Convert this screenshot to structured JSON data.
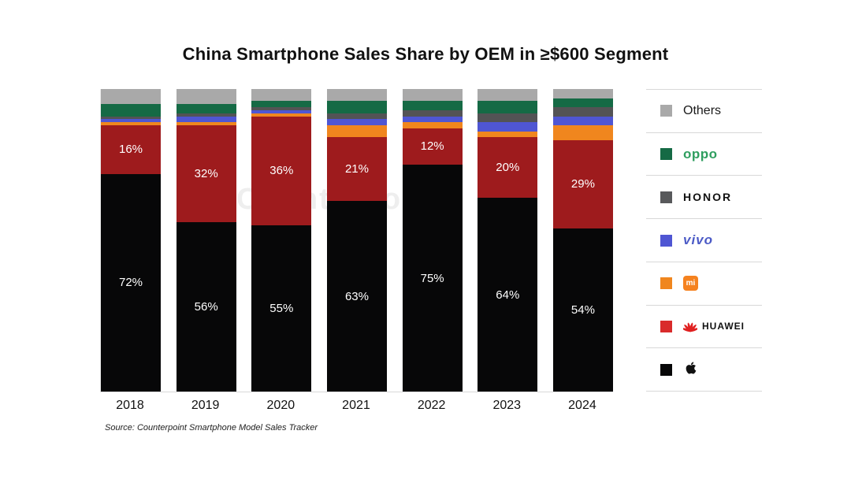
{
  "title": "China Smartphone Sales Share by OEM in ≥$600 Segment",
  "source": "Source: Counterpoint Smartphone Model Sales Tracker",
  "watermark": "Counterpoint",
  "chart_data": {
    "type": "bar",
    "stacked": true,
    "categories": [
      "2018",
      "2019",
      "2020",
      "2021",
      "2022",
      "2023",
      "2024"
    ],
    "series": [
      {
        "name": "Apple",
        "color": "#070708",
        "values": [
          72,
          56,
          55,
          63,
          75,
          64,
          54
        ],
        "labels_shown": true
      },
      {
        "name": "HUAWEI",
        "color": "#9e1b1d",
        "values": [
          16,
          32,
          36,
          21,
          12,
          20,
          29
        ],
        "labels_shown": true
      },
      {
        "name": "Mi",
        "color": "#f0861e",
        "values": [
          1,
          1,
          1,
          4,
          2,
          2,
          5
        ],
        "labels_shown": false
      },
      {
        "name": "vivo",
        "color": "#4f56d3",
        "values": [
          1,
          2,
          1,
          2,
          2,
          3,
          3
        ],
        "labels_shown": false
      },
      {
        "name": "HONOR",
        "color": "#535355",
        "values": [
          1,
          1,
          1,
          2,
          2,
          3,
          3
        ],
        "labels_shown": false
      },
      {
        "name": "OPPO",
        "color": "#156a45",
        "values": [
          4,
          3,
          2,
          4,
          3,
          4,
          3
        ],
        "labels_shown": false
      },
      {
        "name": "Others",
        "color": "#a9a9a9",
        "values": [
          5,
          5,
          4,
          4,
          4,
          4,
          3
        ],
        "labels_shown": false
      }
    ],
    "ylim": [
      0,
      100
    ],
    "value_suffix": "%",
    "grid": false,
    "legend_position": "right"
  },
  "legend": {
    "items": [
      {
        "key": "others",
        "label": "Others",
        "swatch": "#a9a9a9"
      },
      {
        "key": "oppo",
        "label": "oppo",
        "swatch": "#156a45"
      },
      {
        "key": "honor",
        "label": "HONOR",
        "swatch": "#58595b"
      },
      {
        "key": "vivo",
        "label": "vivo",
        "swatch": "#4f56d3"
      },
      {
        "key": "mi",
        "label": "mi",
        "swatch": "#f0861e"
      },
      {
        "key": "huawei",
        "label": "HUAWEI",
        "swatch": "#d92b2b"
      },
      {
        "key": "apple",
        "label": "Apple",
        "swatch": "#070708"
      }
    ]
  }
}
